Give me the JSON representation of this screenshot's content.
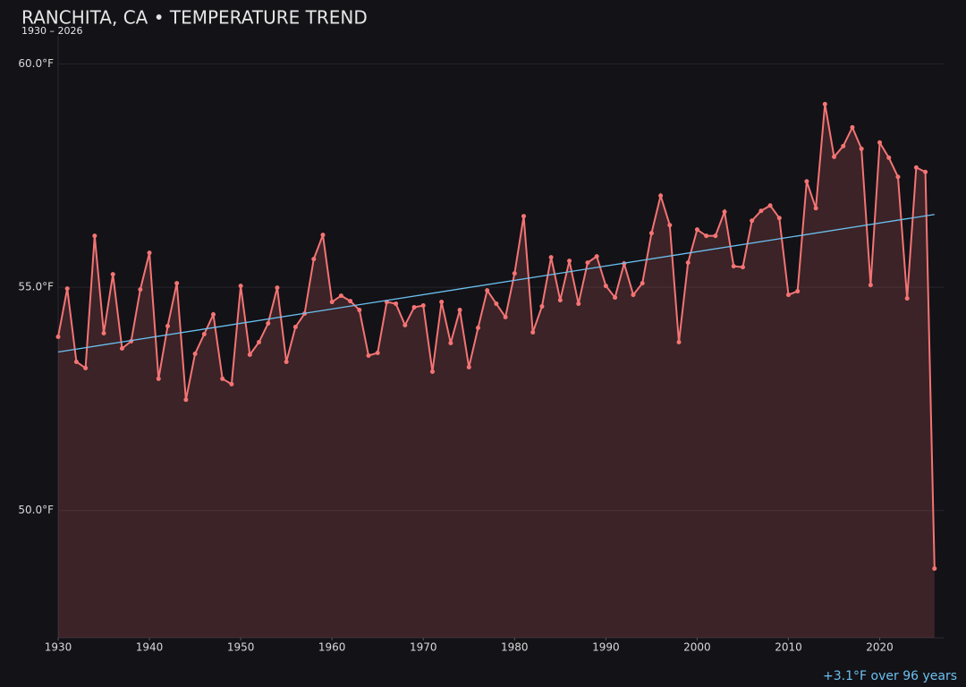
{
  "chart_data": {
    "type": "line",
    "title": "RANCHITA, CA • TEMPERATURE TREND",
    "subtitle": "1930 – 2026",
    "annotation": "+3.1°F over 96 years",
    "x": [
      1930,
      1931,
      1932,
      1933,
      1934,
      1935,
      1936,
      1937,
      1938,
      1939,
      1940,
      1941,
      1942,
      1943,
      1944,
      1945,
      1946,
      1947,
      1948,
      1949,
      1950,
      1951,
      1952,
      1953,
      1954,
      1955,
      1956,
      1957,
      1958,
      1959,
      1960,
      1961,
      1962,
      1963,
      1964,
      1965,
      1966,
      1967,
      1968,
      1969,
      1970,
      1971,
      1972,
      1973,
      1974,
      1975,
      1976,
      1977,
      1978,
      1979,
      1980,
      1981,
      1982,
      1983,
      1984,
      1985,
      1986,
      1987,
      1988,
      1989,
      1990,
      1991,
      1992,
      1993,
      1994,
      1995,
      1996,
      1997,
      1998,
      1999,
      2000,
      2001,
      2002,
      2003,
      2004,
      2005,
      2006,
      2007,
      2008,
      2009,
      2010,
      2011,
      2012,
      2013,
      2014,
      2015,
      2016,
      2017,
      2018,
      2019,
      2020,
      2021,
      2022,
      2023,
      2024,
      2025,
      2026
    ],
    "series": [
      {
        "color": "#f47474",
        "values": [
          53.89,
          54.97,
          53.33,
          53.19,
          56.15,
          53.97,
          55.29,
          53.63,
          53.79,
          54.95,
          55.77,
          52.95,
          54.13,
          55.09,
          52.48,
          53.51,
          53.95,
          54.39,
          52.95,
          52.83,
          55.03,
          53.49,
          53.77,
          54.19,
          54.99,
          53.33,
          54.11,
          54.41,
          55.63,
          56.17,
          54.67,
          54.81,
          54.69,
          54.49,
          53.47,
          53.53,
          54.67,
          54.63,
          54.15,
          54.55,
          54.59,
          53.11,
          54.67,
          53.75,
          54.49,
          53.21,
          54.09,
          54.93,
          54.63,
          54.33,
          55.31,
          56.59,
          53.99,
          54.57,
          55.67,
          54.71,
          55.59,
          54.63,
          55.55,
          55.69,
          55.03,
          54.77,
          55.53,
          54.83,
          55.09,
          56.21,
          57.05,
          56.39,
          53.77,
          55.55,
          56.29,
          56.15,
          56.15,
          56.69,
          55.47,
          55.45,
          56.49,
          56.71,
          56.83,
          56.55,
          54.83,
          54.91,
          57.37,
          56.77,
          59.1,
          57.92,
          58.16,
          58.58,
          58.1,
          55.05,
          58.24,
          57.9,
          57.47,
          54.75,
          57.68,
          57.58,
          48.7
        ]
      }
    ],
    "trend": {
      "color": "#6cc0f0",
      "x": [
        1930,
        2026
      ],
      "values": [
        53.55,
        56.63
      ]
    },
    "xlim": [
      1930,
      2027
    ],
    "xticks": [
      1930,
      1940,
      1950,
      1960,
      1970,
      1980,
      1990,
      2000,
      2010,
      2020
    ],
    "ylim": [
      47.15,
      60.55
    ],
    "yticks": [
      {
        "value": 50,
        "label": "50.0°F"
      },
      {
        "value": 55,
        "label": "55.0°F"
      },
      {
        "value": 60,
        "label": "60.0°F"
      }
    ],
    "grid": true
  }
}
